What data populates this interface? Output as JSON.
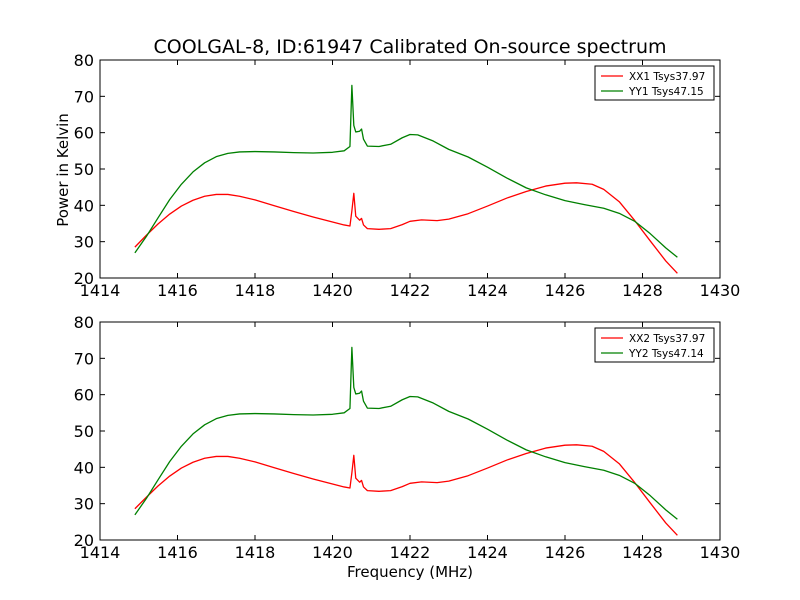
{
  "title": "COOLGAL-8, ID:61947 Calibrated On-source spectrum",
  "xlabel": "Frequency (MHz)",
  "ylabel": "Power in Kelvin",
  "chart_data": [
    {
      "type": "line",
      "title": "COOLGAL-8, ID:61947 Calibrated On-source spectrum",
      "xlabel": "",
      "ylabel": "Power in Kelvin",
      "xlim": [
        1414,
        1430
      ],
      "ylim": [
        20,
        80
      ],
      "xticks": [
        1414,
        1416,
        1418,
        1420,
        1422,
        1424,
        1426,
        1428,
        1430
      ],
      "yticks": [
        20,
        30,
        40,
        50,
        60,
        70,
        80
      ],
      "legend_position": "top-right",
      "grid": false,
      "series": [
        {
          "name": "XX1 Tsys37.97",
          "color": "#ff0000",
          "x": [
            1414.9,
            1415.2,
            1415.5,
            1415.8,
            1416.1,
            1416.4,
            1416.7,
            1417.0,
            1417.3,
            1417.6,
            1418.0,
            1418.5,
            1419.0,
            1419.5,
            1420.0,
            1420.3,
            1420.45,
            1420.5,
            1420.55,
            1420.6,
            1420.7,
            1420.75,
            1420.8,
            1420.9,
            1421.2,
            1421.5,
            1421.8,
            1422.0,
            1422.3,
            1422.7,
            1423.0,
            1423.5,
            1424.0,
            1424.5,
            1425.0,
            1425.5,
            1426.0,
            1426.3,
            1426.7,
            1427.0,
            1427.4,
            1427.8,
            1428.2,
            1428.6,
            1428.9
          ],
          "y": [
            28.5,
            31.8,
            34.9,
            37.6,
            39.8,
            41.4,
            42.5,
            43.0,
            43.0,
            42.5,
            41.5,
            39.9,
            38.3,
            36.8,
            35.4,
            34.6,
            34.3,
            38.5,
            43.3,
            37.0,
            35.9,
            36.4,
            34.6,
            33.6,
            33.4,
            33.6,
            34.7,
            35.6,
            36.0,
            35.8,
            36.2,
            37.7,
            39.8,
            42.0,
            43.8,
            45.3,
            46.1,
            46.2,
            45.8,
            44.4,
            41.0,
            35.8,
            30.2,
            24.7,
            21.3
          ]
        },
        {
          "name": "YY1 Tsys47.15",
          "color": "#008000",
          "x": [
            1414.9,
            1415.2,
            1415.5,
            1415.8,
            1416.1,
            1416.4,
            1416.7,
            1417.0,
            1417.3,
            1417.6,
            1418.0,
            1418.5,
            1419.0,
            1419.5,
            1420.0,
            1420.3,
            1420.45,
            1420.5,
            1420.55,
            1420.6,
            1420.7,
            1420.75,
            1420.8,
            1420.9,
            1421.2,
            1421.5,
            1421.8,
            1422.0,
            1422.2,
            1422.6,
            1423.0,
            1423.5,
            1424.0,
            1424.5,
            1425.0,
            1425.5,
            1426.0,
            1426.5,
            1427.0,
            1427.4,
            1427.8,
            1428.2,
            1428.6,
            1428.9
          ],
          "y": [
            26.9,
            31.5,
            36.6,
            41.6,
            45.8,
            49.2,
            51.7,
            53.4,
            54.3,
            54.7,
            54.8,
            54.7,
            54.5,
            54.4,
            54.6,
            55.0,
            56.2,
            73.0,
            62.0,
            60.2,
            60.4,
            61.0,
            58.2,
            56.3,
            56.2,
            56.8,
            58.6,
            59.5,
            59.4,
            57.7,
            55.4,
            53.3,
            50.5,
            47.5,
            44.8,
            42.9,
            41.3,
            40.2,
            39.2,
            37.8,
            35.6,
            32.2,
            28.3,
            25.7
          ]
        }
      ]
    },
    {
      "type": "line",
      "title": "",
      "xlabel": "Frequency (MHz)",
      "ylabel": "",
      "xlim": [
        1414,
        1430
      ],
      "ylim": [
        20,
        80
      ],
      "xticks": [
        1414,
        1416,
        1418,
        1420,
        1422,
        1424,
        1426,
        1428,
        1430
      ],
      "yticks": [
        20,
        30,
        40,
        50,
        60,
        70,
        80
      ],
      "legend_position": "top-right",
      "grid": false,
      "series": [
        {
          "name": "XX2 Tsys37.97",
          "color": "#ff0000",
          "x": [
            1414.9,
            1415.2,
            1415.5,
            1415.8,
            1416.1,
            1416.4,
            1416.7,
            1417.0,
            1417.3,
            1417.6,
            1418.0,
            1418.5,
            1419.0,
            1419.5,
            1420.0,
            1420.3,
            1420.45,
            1420.5,
            1420.55,
            1420.6,
            1420.7,
            1420.75,
            1420.8,
            1420.9,
            1421.2,
            1421.5,
            1421.8,
            1422.0,
            1422.3,
            1422.7,
            1423.0,
            1423.5,
            1424.0,
            1424.5,
            1425.0,
            1425.5,
            1426.0,
            1426.3,
            1426.7,
            1427.0,
            1427.4,
            1427.8,
            1428.2,
            1428.6,
            1428.9
          ],
          "y": [
            28.6,
            31.8,
            34.9,
            37.6,
            39.8,
            41.4,
            42.5,
            43.0,
            43.0,
            42.5,
            41.5,
            39.9,
            38.3,
            36.8,
            35.4,
            34.6,
            34.3,
            38.5,
            43.3,
            37.0,
            35.9,
            36.4,
            34.6,
            33.6,
            33.4,
            33.6,
            34.7,
            35.6,
            36.0,
            35.8,
            36.2,
            37.7,
            39.8,
            42.0,
            43.8,
            45.3,
            46.1,
            46.2,
            45.8,
            44.4,
            41.0,
            35.8,
            30.2,
            24.7,
            21.3
          ]
        },
        {
          "name": "YY2 Tsys47.14",
          "color": "#008000",
          "x": [
            1414.9,
            1415.2,
            1415.5,
            1415.8,
            1416.1,
            1416.4,
            1416.7,
            1417.0,
            1417.3,
            1417.6,
            1418.0,
            1418.5,
            1419.0,
            1419.5,
            1420.0,
            1420.3,
            1420.45,
            1420.5,
            1420.55,
            1420.6,
            1420.7,
            1420.75,
            1420.8,
            1420.9,
            1421.2,
            1421.5,
            1421.8,
            1422.0,
            1422.2,
            1422.6,
            1423.0,
            1423.5,
            1424.0,
            1424.5,
            1425.0,
            1425.5,
            1426.0,
            1426.5,
            1427.0,
            1427.4,
            1427.8,
            1428.2,
            1428.6,
            1428.9
          ],
          "y": [
            26.9,
            31.5,
            36.6,
            41.6,
            45.8,
            49.2,
            51.7,
            53.4,
            54.3,
            54.7,
            54.8,
            54.7,
            54.5,
            54.4,
            54.6,
            55.0,
            56.2,
            73.0,
            62.0,
            60.2,
            60.4,
            61.0,
            58.2,
            56.3,
            56.2,
            56.8,
            58.6,
            59.5,
            59.4,
            57.7,
            55.4,
            53.3,
            50.5,
            47.5,
            44.8,
            42.9,
            41.3,
            40.2,
            39.2,
            37.8,
            35.6,
            32.2,
            28.3,
            25.7
          ]
        }
      ]
    }
  ]
}
